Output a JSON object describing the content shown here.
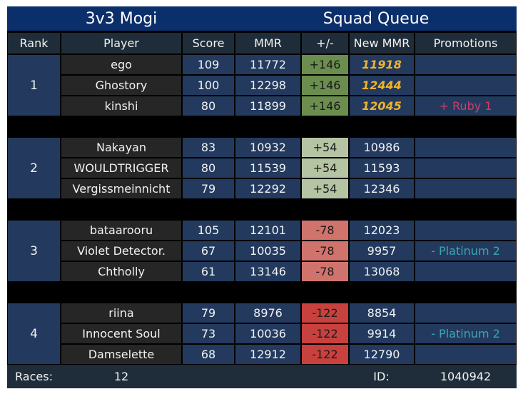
{
  "header": {
    "mode": "3v3 Mogi",
    "title": "Squad Queue"
  },
  "columns": [
    "Rank",
    "Player",
    "Score",
    "MMR",
    "+/-",
    "New MMR",
    "Promotions"
  ],
  "teams": [
    {
      "rank": "1",
      "players": [
        {
          "name": "ego",
          "score": "109",
          "mmr": "11772",
          "delta": "+146",
          "new_mmr": "11918",
          "promotion": ""
        },
        {
          "name": "Ghostory",
          "score": "100",
          "mmr": "12298",
          "delta": "+146",
          "new_mmr": "12444",
          "promotion": ""
        },
        {
          "name": "kinshi",
          "score": "80",
          "mmr": "11899",
          "delta": "+146",
          "new_mmr": "12045",
          "promotion": "+ Ruby 1"
        }
      ]
    },
    {
      "rank": "2",
      "players": [
        {
          "name": "Nakayan",
          "score": "83",
          "mmr": "10932",
          "delta": "+54",
          "new_mmr": "10986",
          "promotion": ""
        },
        {
          "name": "WOULDTRIGGER",
          "score": "80",
          "mmr": "11539",
          "delta": "+54",
          "new_mmr": "11593",
          "promotion": ""
        },
        {
          "name": "Vergissmeinnicht",
          "score": "79",
          "mmr": "12292",
          "delta": "+54",
          "new_mmr": "12346",
          "promotion": ""
        }
      ]
    },
    {
      "rank": "3",
      "players": [
        {
          "name": "bataarooru",
          "score": "105",
          "mmr": "12101",
          "delta": "-78",
          "new_mmr": "12023",
          "promotion": ""
        },
        {
          "name": "Violet Detector.",
          "score": "67",
          "mmr": "10035",
          "delta": "-78",
          "new_mmr": "9957",
          "promotion": "- Platinum 2"
        },
        {
          "name": "Chtholly",
          "score": "61",
          "mmr": "13146",
          "delta": "-78",
          "new_mmr": "13068",
          "promotion": ""
        }
      ]
    },
    {
      "rank": "4",
      "players": [
        {
          "name": "riina",
          "score": "79",
          "mmr": "8976",
          "delta": "-122",
          "new_mmr": "8854",
          "promotion": ""
        },
        {
          "name": "Innocent Soul",
          "score": "73",
          "mmr": "10036",
          "delta": "-122",
          "new_mmr": "9914",
          "promotion": "- Platinum 2"
        },
        {
          "name": "Damselette",
          "score": "68",
          "mmr": "12912",
          "delta": "-122",
          "new_mmr": "12790",
          "promotion": ""
        }
      ]
    }
  ],
  "footer": {
    "races_label": "Races:",
    "races_value": "12",
    "id_label": "ID:",
    "id_value": "1040942"
  },
  "colors": {
    "title_bg": "#0a2f6b",
    "header_bg": "#1f2d3a",
    "rank_bg": "#233a5e",
    "player_bg": "#262626",
    "new_mmr_gold": "#f0b429",
    "ruby": "#d23b6a",
    "platinum": "#3aa6b0",
    "team_deltas": [
      "#6b8e4e",
      "#b5c4a3",
      "#d1736d",
      "#c9413e"
    ],
    "delta_text": [
      "#1a1a1a",
      "#1a1a1a",
      "#1a1a1a",
      "#1a1a1a"
    ]
  }
}
